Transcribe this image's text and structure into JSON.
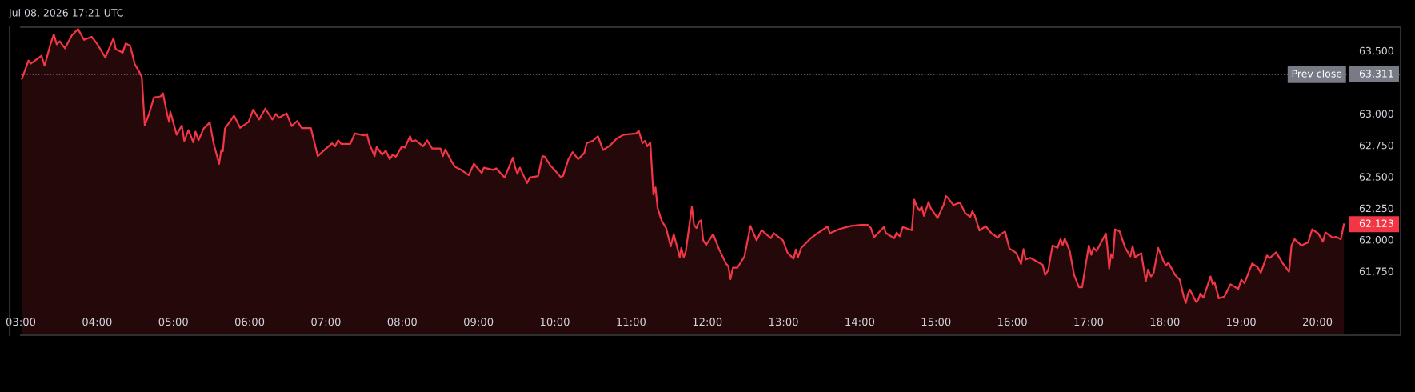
{
  "chart_data": {
    "type": "area",
    "title": "Jul 08, 2026 17:21 UTC",
    "color": "#f23645",
    "x": [
      3.014,
      3.101,
      3.129,
      3.272,
      3.312,
      3.392,
      3.432,
      3.471,
      3.511,
      3.579,
      3.67,
      3.75,
      3.829,
      3.929,
      4.005,
      4.108,
      4.215,
      4.243,
      4.335,
      4.375,
      4.434,
      4.494,
      4.554,
      4.586,
      4.625,
      4.681,
      4.745,
      4.832,
      4.864,
      4.92,
      4.944,
      4.96,
      5.043,
      5.111,
      5.143,
      5.198,
      5.262,
      5.29,
      5.33,
      5.397,
      5.477,
      5.529,
      5.6,
      5.628,
      5.648,
      5.676,
      5.795,
      5.875,
      5.986,
      6.046,
      6.125,
      6.205,
      6.297,
      6.344,
      6.384,
      6.484,
      6.551,
      6.623,
      6.683,
      6.802,
      6.893,
      6.981,
      7.08,
      7.12,
      7.16,
      7.2,
      7.319,
      7.379,
      7.498,
      7.538,
      7.57,
      7.637,
      7.665,
      7.737,
      7.785,
      7.836,
      7.876,
      7.916,
      7.996,
      8.035,
      8.103,
      8.127,
      8.175,
      8.274,
      8.326,
      8.393,
      8.501,
      8.533,
      8.565,
      8.652,
      8.692,
      8.772,
      8.871,
      8.939,
      9.042,
      9.07,
      9.192,
      9.232,
      9.343,
      9.451,
      9.479,
      9.51,
      9.542,
      9.638,
      9.67,
      9.781,
      9.837,
      9.868,
      9.94,
      9.996,
      10.075,
      10.107,
      10.179,
      10.234,
      10.306,
      10.386,
      10.418,
      10.497,
      10.565,
      10.632,
      10.712,
      10.815,
      10.903,
      11.062,
      11.102,
      11.15,
      11.181,
      11.213,
      11.253,
      11.293,
      11.321,
      11.349,
      11.4,
      11.46,
      11.52,
      11.56,
      11.639,
      11.659,
      11.691,
      11.719,
      11.798,
      11.826,
      11.858,
      11.89,
      11.918,
      11.946,
      11.985,
      12.077,
      12.156,
      12.248,
      12.276,
      12.304,
      12.336,
      12.395,
      12.487,
      12.566,
      12.622,
      12.646,
      12.713,
      12.833,
      12.873,
      12.992,
      13.052,
      13.131,
      13.163,
      13.191,
      13.231,
      13.35,
      13.43,
      13.577,
      13.609,
      13.736,
      13.887,
      14.015,
      14.106,
      14.146,
      14.186,
      14.317,
      14.345,
      14.452,
      14.484,
      14.524,
      14.564,
      14.683,
      14.715,
      14.743,
      14.783,
      14.811,
      14.842,
      14.902,
      14.93,
      15.021,
      15.101,
      15.129,
      15.166,
      15.227,
      15.315,
      15.38,
      15.449,
      15.477,
      15.509,
      15.57,
      15.651,
      15.731,
      15.812,
      15.84,
      15.905,
      15.962,
      16.054,
      16.115,
      16.147,
      16.176,
      16.236,
      16.398,
      16.43,
      16.47,
      16.527,
      16.592,
      16.632,
      16.66,
      16.688,
      16.753,
      16.81,
      16.874,
      16.915,
      17.003,
      17.036,
      17.064,
      17.104,
      17.226,
      17.246,
      17.27,
      17.294,
      17.318,
      17.347,
      17.407,
      17.48,
      17.548,
      17.577,
      17.609,
      17.69,
      17.75,
      17.779,
      17.819,
      17.851,
      17.912,
      17.981,
      18.013,
      18.045,
      18.134,
      18.195,
      18.247,
      18.275,
      18.304,
      18.328,
      18.409,
      18.437,
      18.465,
      18.506,
      18.598,
      18.627,
      18.651,
      18.707,
      18.78,
      18.861,
      18.962,
      19.002,
      19.043,
      19.144,
      19.216,
      19.257,
      19.337,
      19.378,
      19.459,
      19.547,
      19.628,
      19.66,
      19.701,
      19.79,
      19.878,
      19.931,
      20.012,
      20.072,
      20.104,
      20.201,
      20.242,
      20.306,
      20.347
    ],
    "values": [
      63275,
      63421,
      63396,
      63460,
      63380,
      63557,
      63630,
      63550,
      63574,
      63518,
      63622,
      63671,
      63586,
      63610,
      63550,
      63445,
      63598,
      63513,
      63484,
      63557,
      63538,
      63392,
      63331,
      63290,
      62906,
      62998,
      63129,
      63137,
      63161,
      62991,
      62935,
      63015,
      62833,
      62906,
      62784,
      62869,
      62772,
      62857,
      62789,
      62882,
      62930,
      62760,
      62602,
      62712,
      62700,
      62882,
      62984,
      62887,
      62935,
      63032,
      62954,
      63040,
      62954,
      62998,
      62967,
      63003,
      62901,
      62942,
      62886,
      62886,
      62663,
      62712,
      62765,
      62741,
      62789,
      62760,
      62760,
      62843,
      62828,
      62838,
      62760,
      62663,
      62736,
      62675,
      62707,
      62639,
      62675,
      62658,
      62741,
      62731,
      62821,
      62780,
      62789,
      62741,
      62789,
      62724,
      62724,
      62663,
      62716,
      62614,
      62578,
      62554,
      62512,
      62602,
      62529,
      62571,
      62554,
      62566,
      62493,
      62651,
      62578,
      62522,
      62571,
      62449,
      62493,
      62505,
      62663,
      62658,
      62590,
      62554,
      62498,
      62505,
      62639,
      62695,
      62639,
      62687,
      62765,
      62784,
      62821,
      62712,
      62741,
      62804,
      62833,
      62843,
      62862,
      62765,
      62784,
      62741,
      62772,
      62359,
      62415,
      62250,
      62153,
      62092,
      61947,
      62044,
      61861,
      61934,
      61861,
      61910,
      62262,
      62117,
      62092,
      62141,
      62153,
      61995,
      61959,
      62044,
      61922,
      61808,
      61789,
      61687,
      61777,
      61777,
      61866,
      62109,
      62031,
      61995,
      62075,
      62012,
      62051,
      61995,
      61898,
      61849,
      61922,
      61861,
      61934,
      62007,
      62044,
      62104,
      62051,
      62085,
      62109,
      62117,
      62117,
      62092,
      62019,
      62100,
      62051,
      62012,
      62056,
      62027,
      62100,
      62075,
      62318,
      62270,
      62231,
      62262,
      62189,
      62299,
      62250,
      62172,
      62279,
      62347,
      62324,
      62275,
      62294,
      62213,
      62181,
      62226,
      62189,
      62073,
      62107,
      62048,
      62016,
      62041,
      62065,
      61930,
      61893,
      61806,
      61925,
      61843,
      61856,
      61801,
      61720,
      61757,
      61954,
      61935,
      62004,
      61959,
      62009,
      61910,
      61720,
      61622,
      61622,
      61954,
      61880,
      61935,
      61910,
      62048,
      61942,
      61769,
      61885,
      61851,
      62082,
      62065,
      61935,
      61868,
      61949,
      61861,
      61893,
      61671,
      61762,
      61708,
      61732,
      61935,
      61831,
      61794,
      61819,
      61720,
      61683,
      61548,
      61498,
      61572,
      61604,
      61506,
      61523,
      61572,
      61540,
      61708,
      61646,
      61663,
      61535,
      61548,
      61646,
      61609,
      61683,
      61654,
      61811,
      61782,
      61737,
      61875,
      61856,
      61900,
      61811,
      61745,
      61954,
      62004,
      61954,
      61979,
      62082,
      62048,
      61984,
      62058,
      62016,
      62023,
      62004,
      62123
    ],
    "xlim": [
      3.0,
      21.09
    ],
    "ylim": [
      61242,
      63686
    ],
    "xticks": [
      {
        "value": 3,
        "label": "03:00"
      },
      {
        "value": 4,
        "label": "04:00"
      },
      {
        "value": 5,
        "label": "05:00"
      },
      {
        "value": 6,
        "label": "06:00"
      },
      {
        "value": 7,
        "label": "07:00"
      },
      {
        "value": 8,
        "label": "08:00"
      },
      {
        "value": 9,
        "label": "09:00"
      },
      {
        "value": 10,
        "label": "10:00"
      },
      {
        "value": 11,
        "label": "11:00"
      },
      {
        "value": 12,
        "label": "12:00"
      },
      {
        "value": 13,
        "label": "13:00"
      },
      {
        "value": 14,
        "label": "14:00"
      },
      {
        "value": 15,
        "label": "15:00"
      },
      {
        "value": 16,
        "label": "16:00"
      },
      {
        "value": 17,
        "label": "17:00"
      },
      {
        "value": 18,
        "label": "18:00"
      },
      {
        "value": 19,
        "label": "19:00"
      },
      {
        "value": 20,
        "label": "20:00"
      }
    ],
    "yticks": [
      {
        "value": 61750,
        "label": "61,750"
      },
      {
        "value": 62000,
        "label": "62,000"
      },
      {
        "value": 62250,
        "label": "62,250"
      },
      {
        "value": 62500,
        "label": "62,500"
      },
      {
        "value": 62750,
        "label": "62,750"
      },
      {
        "value": 63000,
        "label": "63,000"
      },
      {
        "value": 63500,
        "label": "63,500"
      }
    ],
    "ref_lines": [
      {
        "axis": "y",
        "value": 63311,
        "label": "Prev close",
        "color": "#787b86",
        "line_style": "dotted"
      }
    ],
    "annotations": [
      {
        "text": "63,311",
        "y": 63311
      },
      "62,123"
    ]
  }
}
